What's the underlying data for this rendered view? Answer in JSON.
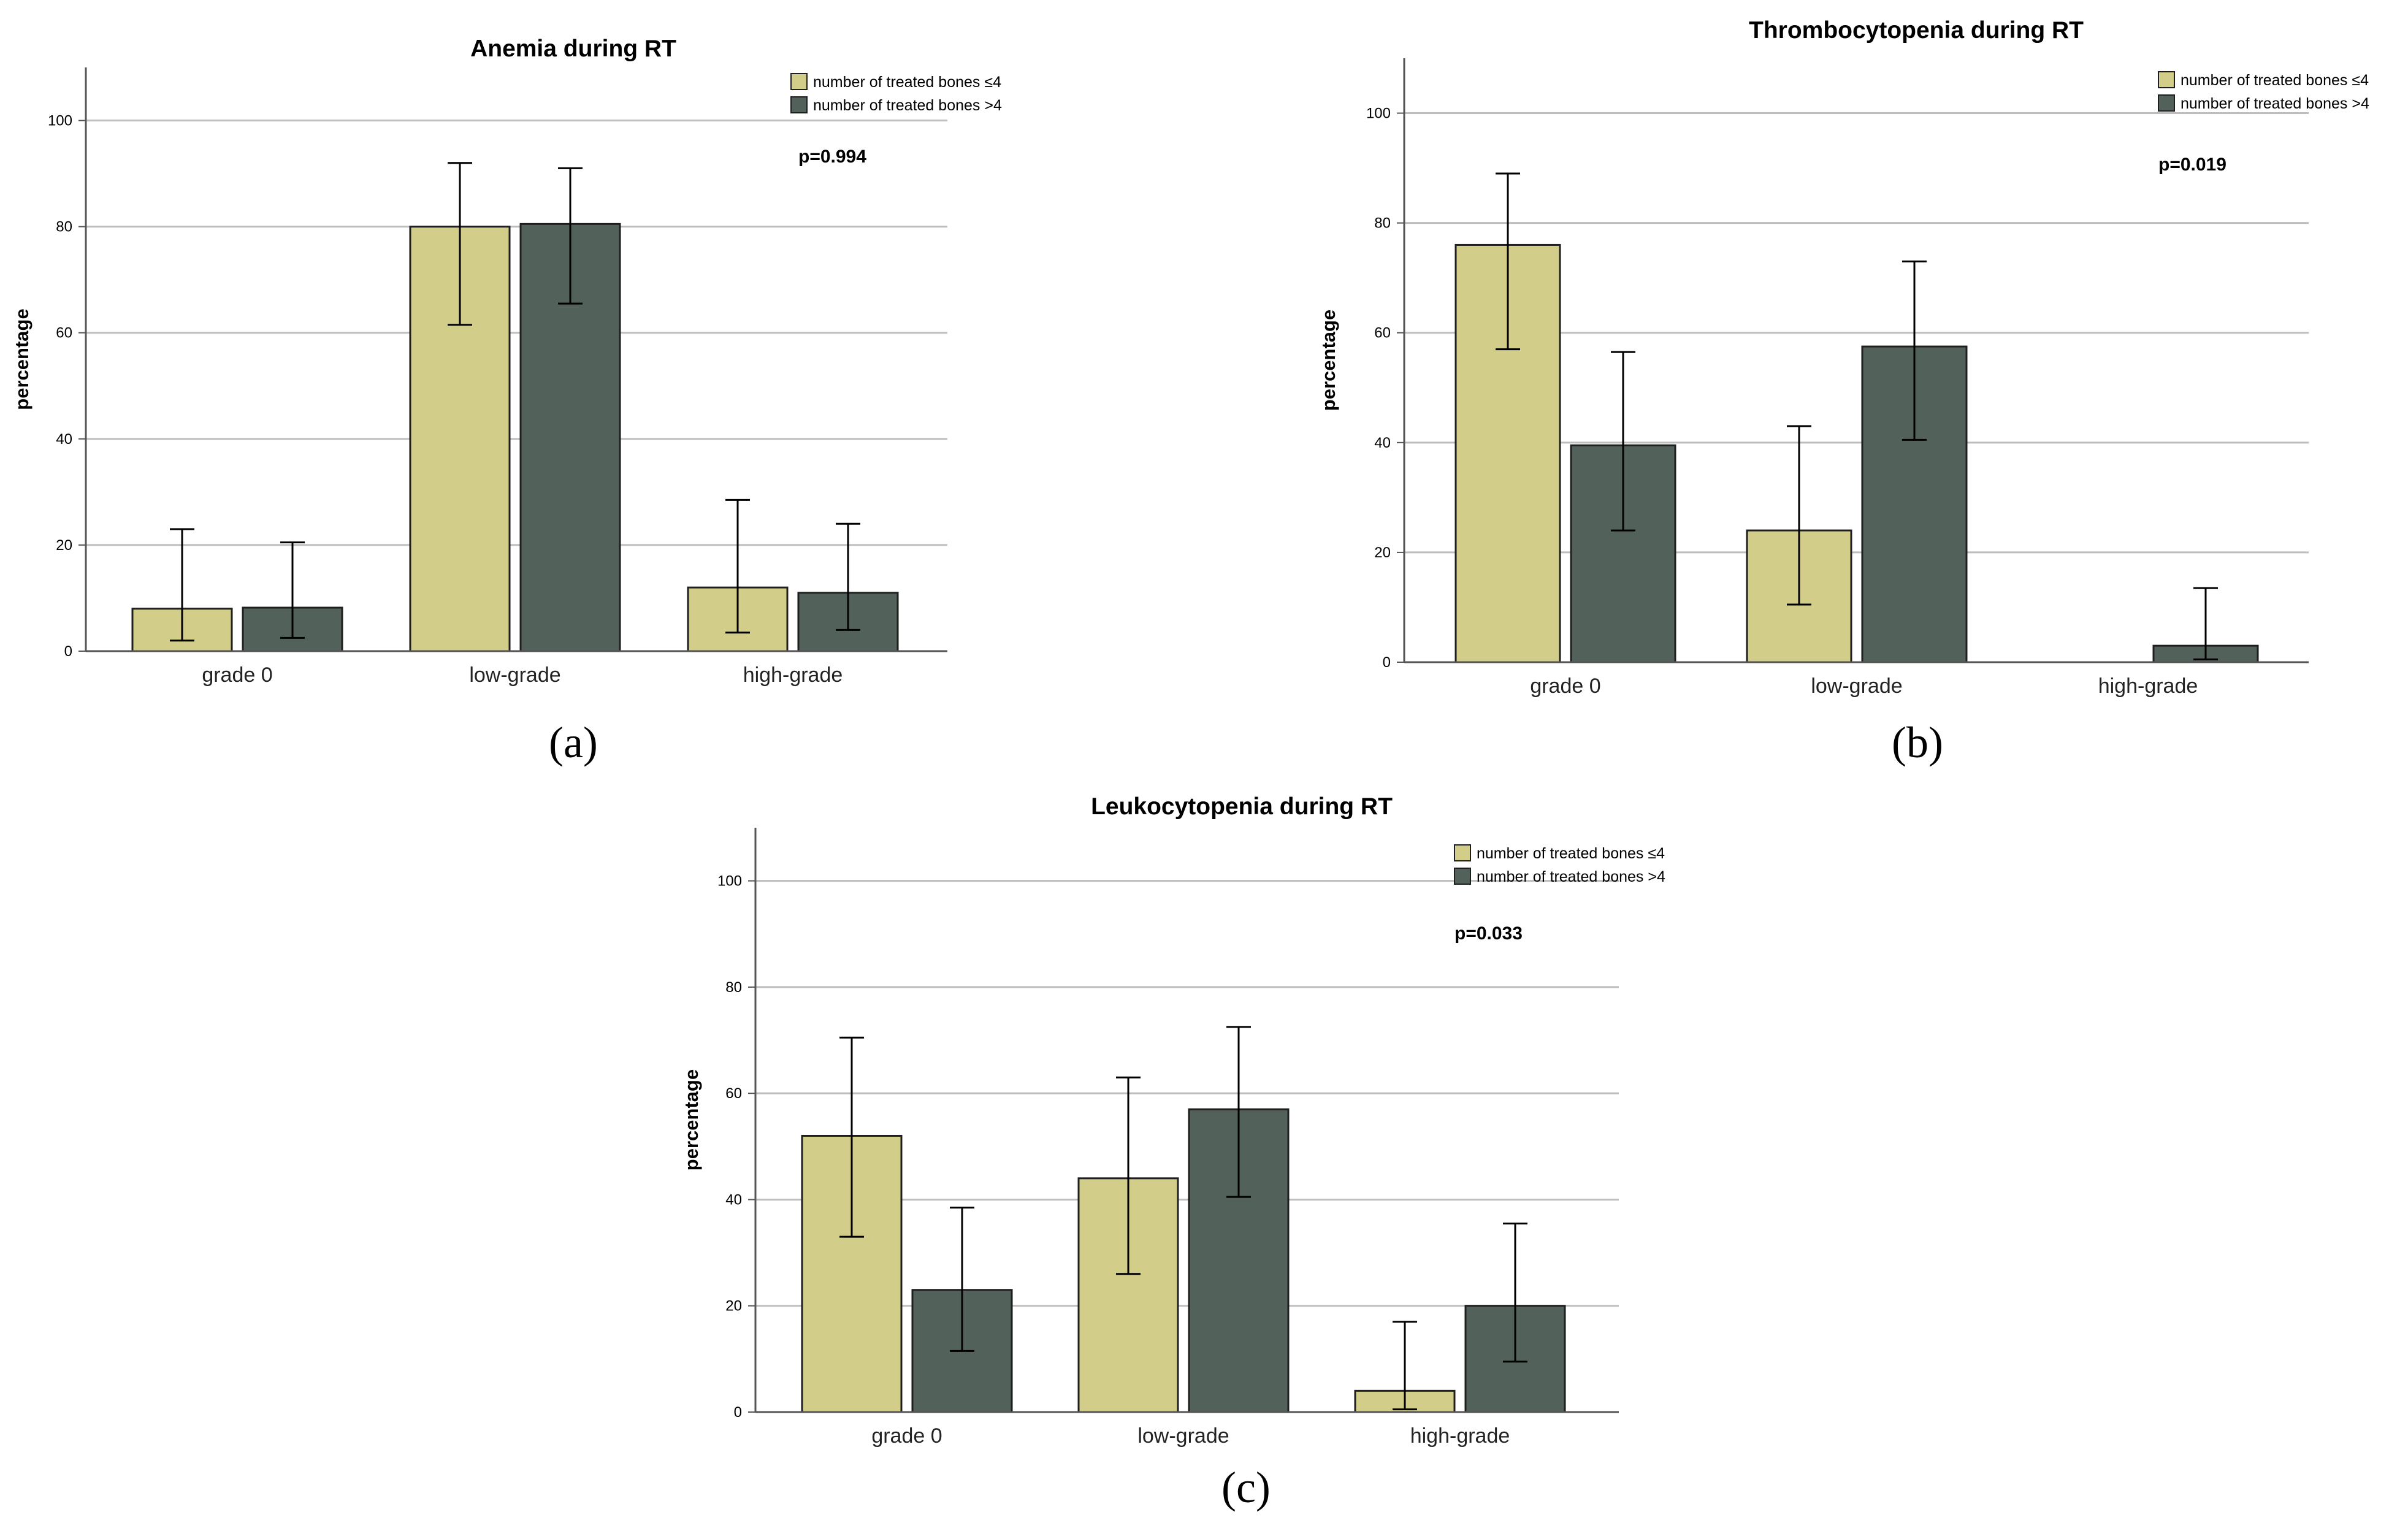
{
  "chart_data": [
    {
      "id": "a",
      "type": "bar",
      "title": "Anemia during RT",
      "panel_label": "(a)",
      "ylabel": "percentage",
      "xlabel": "",
      "ylim": [
        0,
        110
      ],
      "yticks": [
        0,
        20,
        40,
        60,
        80,
        100
      ],
      "grid": true,
      "categories": [
        "grade 0",
        "low-grade",
        "high-grade"
      ],
      "series": [
        {
          "name": "number of treated bones ≤4",
          "color": "#d3cd8a",
          "values": [
            8,
            80,
            12
          ],
          "err_low": [
            2,
            61.5,
            3.5
          ],
          "err_high": [
            23,
            92,
            28.5
          ]
        },
        {
          "name": "number of treated bones >4",
          "color": "#52625a",
          "values": [
            8.2,
            80.5,
            11
          ],
          "err_low": [
            2.5,
            65.5,
            4
          ],
          "err_high": [
            20.5,
            91,
            24
          ]
        }
      ],
      "annotation": "p=0.994",
      "legend": "top-right"
    },
    {
      "id": "b",
      "type": "bar",
      "title": "Thrombocytopenia during RT",
      "panel_label": "(b)",
      "ylabel": "percentage",
      "xlabel": "",
      "ylim": [
        0,
        110
      ],
      "yticks": [
        0,
        20,
        40,
        60,
        80,
        100
      ],
      "grid": true,
      "categories": [
        "grade 0",
        "low-grade",
        "high-grade"
      ],
      "series": [
        {
          "name": "number of treated bones ≤4",
          "color": "#d3cd8a",
          "values": [
            76,
            24,
            0
          ],
          "err_low": [
            57,
            10.5,
            0
          ],
          "err_high": [
            89,
            43,
            0
          ]
        },
        {
          "name": "number of treated bones >4",
          "color": "#52625a",
          "values": [
            39.5,
            57.5,
            3
          ],
          "err_low": [
            24,
            40.5,
            0.5
          ],
          "err_high": [
            56.5,
            73,
            13.5
          ]
        }
      ],
      "annotation": "p=0.019",
      "legend": "top-right"
    },
    {
      "id": "c",
      "type": "bar",
      "title": "Leukocytopenia during RT",
      "panel_label": "(c)",
      "ylabel": "percentage",
      "xlabel": "",
      "ylim": [
        0,
        110
      ],
      "yticks": [
        0,
        20,
        40,
        60,
        80,
        100
      ],
      "grid": true,
      "categories": [
        "grade 0",
        "low-grade",
        "high-grade"
      ],
      "series": [
        {
          "name": "number of treated bones ≤4",
          "color": "#d3cd8a",
          "values": [
            52,
            44,
            4
          ],
          "err_low": [
            33,
            26,
            0.5
          ],
          "err_high": [
            70.5,
            63,
            17
          ]
        },
        {
          "name": "number of treated bones >4",
          "color": "#52625a",
          "values": [
            23,
            57,
            20
          ],
          "err_low": [
            11.5,
            40.5,
            9.5
          ],
          "err_high": [
            38.5,
            72.5,
            35.5
          ]
        }
      ],
      "annotation": "p=0.033",
      "legend": "top-right"
    }
  ]
}
